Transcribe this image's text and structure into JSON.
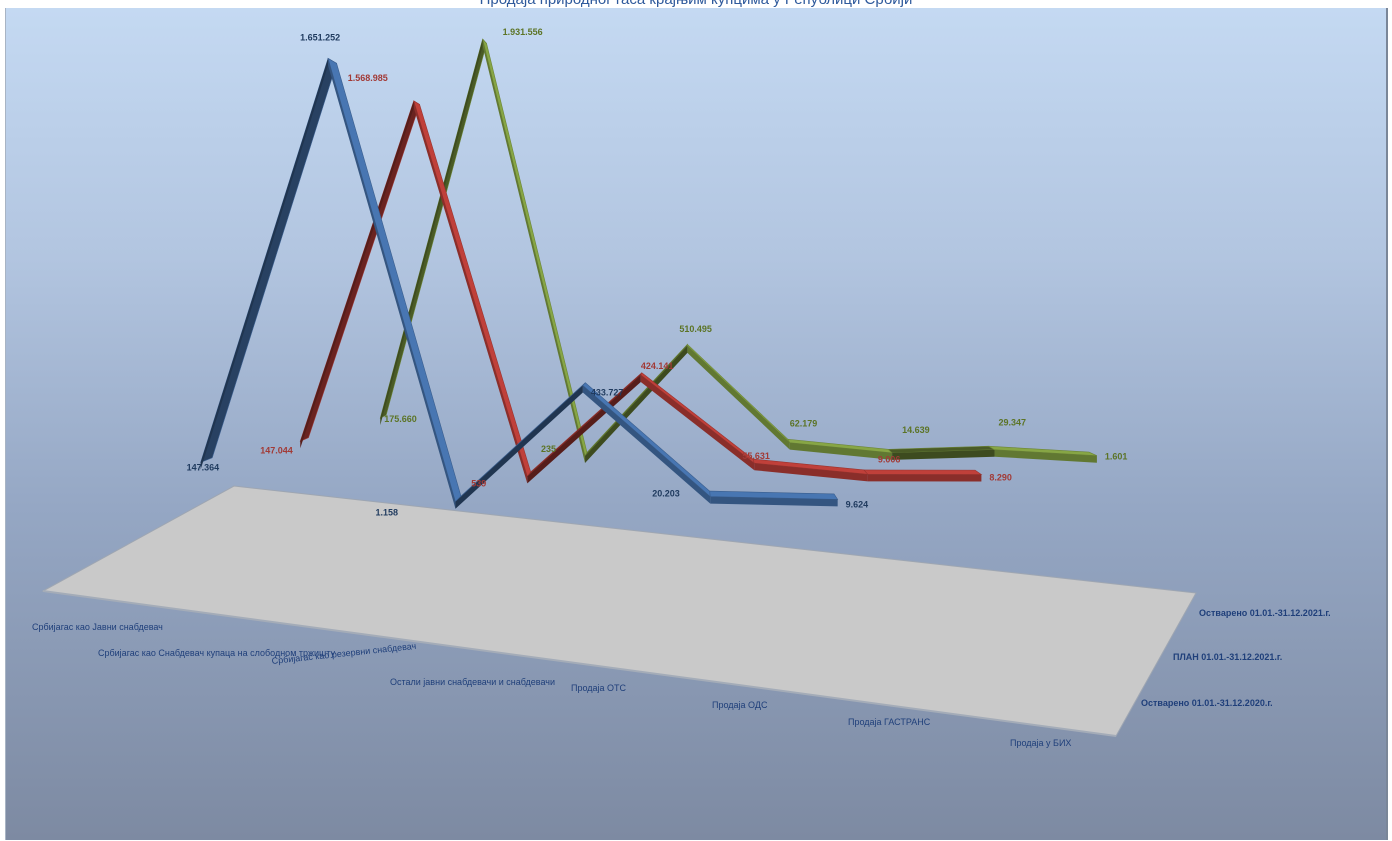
{
  "header": {
    "title": "Продаја природног гаса крајњим купцима у Републици Србији"
  },
  "colors": {
    "series_blue": "#4876b2",
    "series_red": "#c0403a",
    "series_green": "#87a645",
    "floor": "#c9c9c9"
  },
  "chart_data": {
    "type": "line",
    "subtype": "3d-line",
    "title": "",
    "categories": [
      "Србијагас као Јавни снабдевач",
      "Србијагас као  Снабдевач купаца на слободном тржишту",
      "Србијагас као резервни снабдевач",
      "Остали јавни снабдевачи и снабдевачи",
      "Продаја ОТС",
      "Продаја  ОДС",
      "Продаја ГАСТРАНС",
      "Продаја у БИХ"
    ],
    "series": [
      {
        "name": "Остварено 01.01.-31.12.2020.г.",
        "values": [
          147364,
          1651252,
          1158,
          433727,
          20203,
          9624,
          null,
          null
        ],
        "labels": [
          "147.364",
          "1.651.252",
          "1.158",
          "433.727",
          "20.203",
          "9.624",
          "",
          ""
        ]
      },
      {
        "name": "ПЛАН 01.01.-31.12.2021.г.",
        "values": [
          147044,
          1568985,
          539,
          424141,
          55631,
          9006,
          8290,
          null
        ],
        "labels": [
          "147.044",
          "1.568.985",
          "539",
          "424.141",
          "55.631",
          "9.006",
          "8.290",
          ""
        ]
      },
      {
        "name": "Остварено 01.01.-31.12.2021.г.",
        "values": [
          175660,
          1931556,
          235,
          510495,
          62179,
          14639,
          29347,
          1601
        ],
        "labels": [
          "175.660",
          "1.931.556",
          "235",
          "510.495",
          "62.179",
          "14.639",
          "29.347",
          "1.601"
        ]
      }
    ],
    "legend": "depth-axis-right",
    "grid": false
  }
}
